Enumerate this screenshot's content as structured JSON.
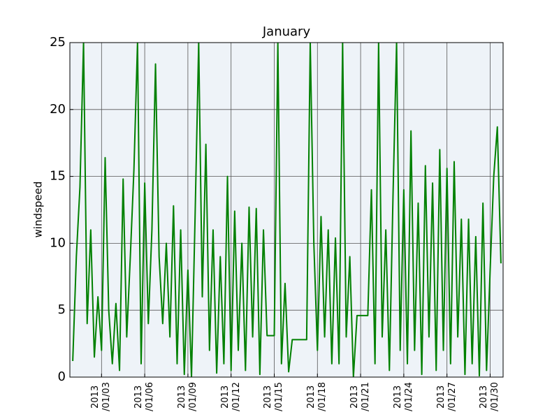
{
  "chart_data": {
    "type": "line",
    "title": "January",
    "ylabel": "windspeed",
    "color": "#008000",
    "grid": true,
    "x": [
      1.0,
      1.25,
      1.5,
      1.75,
      2.0,
      2.25,
      2.5,
      2.75,
      3.0,
      3.25,
      3.5,
      3.75,
      4.0,
      4.25,
      4.5,
      4.75,
      5.0,
      5.25,
      5.5,
      5.75,
      6.0,
      6.25,
      6.5,
      6.75,
      7.0,
      7.25,
      7.5,
      7.75,
      8.0,
      8.25,
      8.5,
      8.75,
      9.0,
      9.25,
      9.5,
      9.75,
      10.0,
      10.25,
      10.5,
      10.75,
      11.0,
      11.25,
      11.5,
      11.75,
      12.0,
      12.25,
      12.5,
      12.75,
      13.0,
      13.25,
      13.5,
      13.75,
      14.0,
      14.25,
      14.5,
      14.75,
      15.0,
      15.25,
      15.5,
      15.75,
      16.0,
      16.25,
      16.5,
      16.75,
      17.0,
      17.25,
      17.5,
      17.75,
      18.0,
      18.25,
      18.5,
      18.75,
      19.0,
      19.25,
      19.5,
      19.75,
      20.0,
      20.25,
      20.5,
      20.75,
      21.0,
      21.25,
      21.5,
      21.75,
      22.0,
      22.25,
      22.5,
      22.75,
      23.0,
      23.25,
      23.5,
      23.75,
      24.0,
      24.25,
      24.5,
      24.75,
      25.0,
      25.25,
      25.5,
      25.75,
      26.0,
      26.25,
      26.5,
      26.75,
      27.0,
      27.25,
      27.5,
      27.75,
      28.0,
      28.25,
      28.5,
      28.75,
      29.0,
      29.25,
      29.5,
      29.75,
      30.0,
      30.25,
      30.5,
      30.75
    ],
    "values": [
      1.2,
      9,
      14.2,
      25,
      4,
      11,
      1.5,
      6,
      2,
      16.4,
      5,
      1,
      5.5,
      0.5,
      14.8,
      3,
      9,
      15.5,
      25,
      1,
      14.5,
      4,
      11,
      23.4,
      9,
      4,
      10,
      3,
      12.8,
      1,
      11,
      0.2,
      8,
      0,
      12,
      25,
      6,
      17.4,
      2,
      11,
      0.3,
      9,
      1,
      15,
      0.5,
      12.4,
      2,
      10,
      0.5,
      12.7,
      3,
      12.6,
      0.2,
      11,
      3.1,
      3.1,
      3.1,
      25,
      1,
      7,
      0.4,
      2.8,
      2.8,
      2.8,
      2.8,
      2.8,
      25,
      10,
      2,
      12,
      3,
      11,
      1,
      10.4,
      1,
      25,
      3,
      9,
      0,
      4.6,
      4.6,
      4.6,
      4.6,
      14,
      1,
      25,
      3,
      11,
      0.5,
      13.5,
      25,
      2,
      14,
      1,
      18.4,
      2,
      13,
      0.2,
      15.8,
      3,
      14.5,
      0.5,
      17,
      2,
      15.6,
      1,
      16.1,
      3,
      11.8,
      0.2,
      11.8,
      1,
      10.5,
      0.1,
      13,
      0.5,
      8,
      15,
      18.7,
      8.5
    ],
    "xlim": [
      0.8,
      30.9
    ],
    "xticks": [
      {
        "value": 3,
        "label": "2013\n/01/03"
      },
      {
        "value": 6,
        "label": "2013\n/01/06"
      },
      {
        "value": 9,
        "label": "2013\n/01/09"
      },
      {
        "value": 12,
        "label": "2013\n/01/12"
      },
      {
        "value": 15,
        "label": "2013\n/01/15"
      },
      {
        "value": 18,
        "label": "2013\n/01/18"
      },
      {
        "value": 21,
        "label": "2013\n/01/21"
      },
      {
        "value": 24,
        "label": "2013\n/01/24"
      },
      {
        "value": 27,
        "label": "2013\n/01/27"
      },
      {
        "value": 30,
        "label": "2013\n/01/30"
      }
    ],
    "ylim": [
      0,
      25
    ],
    "yticks": [
      0,
      5,
      10,
      15,
      20,
      25
    ]
  }
}
